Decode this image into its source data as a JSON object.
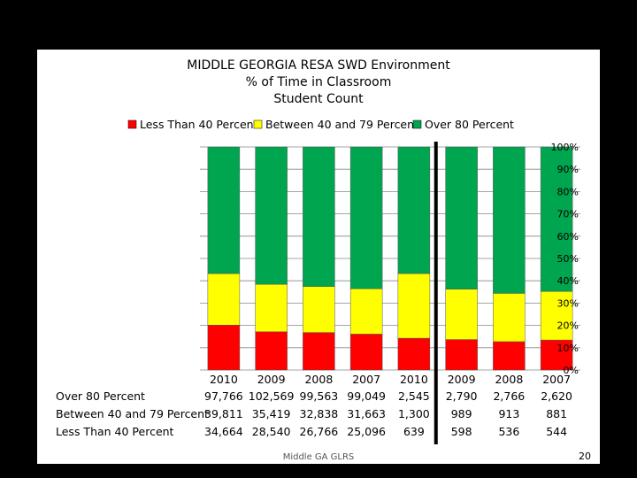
{
  "footer": "Middle GA GLRS",
  "page_number": "20",
  "colors": {
    "less_than_40": "#ff0000",
    "between_40_79": "#ffff00",
    "over_80": "#00a550",
    "gridline": "#888888",
    "divider": "#000000"
  },
  "chart_data": {
    "type": "bar",
    "stacked": "percent",
    "title": [
      "MIDDLE GEORGIA RESA SWD Environment",
      "% of Time in Classroom",
      "Student Count"
    ],
    "categories": [
      "2010",
      "2009",
      "2008",
      "2007",
      "2010",
      "2009",
      "2008",
      "2007"
    ],
    "series": [
      {
        "name": "Less Than 40 Percent",
        "color": "#ff0000",
        "labels": [
          "34,664",
          "28,540",
          "26,766",
          "25,096",
          "639",
          "598",
          "536",
          "544"
        ],
        "values": [
          34664,
          28540,
          26766,
          25096,
          639,
          598,
          536,
          544
        ]
      },
      {
        "name": "Between 40 and 79 Percent",
        "color": "#ffff00",
        "labels": [
          "39,811",
          "35,419",
          "32,838",
          "31,663",
          "1,300",
          "989",
          "913",
          "881"
        ],
        "values": [
          39811,
          35419,
          32838,
          31663,
          1300,
          989,
          913,
          881
        ]
      },
      {
        "name": "Over 80 Percent",
        "color": "#00a550",
        "labels": [
          "97,766",
          "102,569",
          "99,563",
          "99,049",
          "2,545",
          "2,790",
          "2,766",
          "2,620"
        ],
        "values": [
          97766,
          102569,
          99563,
          99049,
          2545,
          2790,
          2766,
          2620
        ]
      }
    ],
    "y_axis": {
      "side": "right",
      "ylim": [
        0,
        100
      ],
      "ticks": [
        "0%",
        "10%",
        "20%",
        "30%",
        "40%",
        "50%",
        "60%",
        "70%",
        "80%",
        "90%",
        "100%"
      ]
    },
    "legend_position": "top",
    "grid": true,
    "data_table": true,
    "divider_between": [
      4,
      5
    ]
  }
}
